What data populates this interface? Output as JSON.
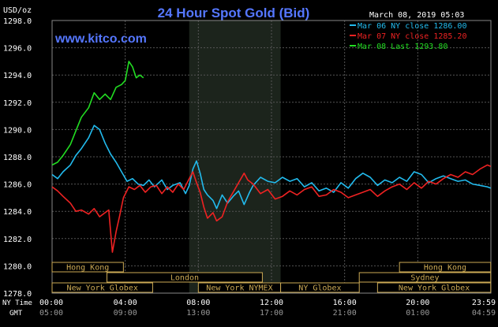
{
  "chart_data": {
    "type": "line",
    "title": "24 Hour Spot Gold (Bid)",
    "website": "www.kitco.com",
    "date_label": "March 08, 2019 05:03",
    "ylabel": "USD/oz",
    "ylim": [
      1278.0,
      1298.0
    ],
    "yticks": [
      "1298.0",
      "1296.0",
      "1294.0",
      "1292.0",
      "1290.0",
      "1288.0",
      "1286.0",
      "1284.0",
      "1282.0",
      "1280.0",
      "1278.0"
    ],
    "xlim": [
      0,
      24
    ],
    "row_ny_label": "NY Time",
    "row_gmt_label": "GMT",
    "x_ny_ticks": [
      "00:00",
      "04:00",
      "08:00",
      "12:00",
      "16:00",
      "20:00",
      "23:59"
    ],
    "x_gmt_ticks": [
      "05:00",
      "09:00",
      "13:00",
      "17:00",
      "21:00",
      "01:00",
      "04:59"
    ],
    "shaded_hours": [
      7.5,
      12.5
    ],
    "sessions": [
      {
        "label": "Hong Kong",
        "row": 0,
        "start": 0,
        "end": 3.9
      },
      {
        "label": "London",
        "row": 1,
        "start": 3.0,
        "end": 11.5
      },
      {
        "label": "New York Globex",
        "row": 2,
        "start": 0,
        "end": 5.5
      },
      {
        "label": "New York NYMEX",
        "row": 2,
        "start": 8.0,
        "end": 12.5
      },
      {
        "label": "NY Globex",
        "row": 2,
        "start": 12.5,
        "end": 16.8
      },
      {
        "label": "Hong Kong",
        "row": 0,
        "start": 19.0,
        "end": 23.99
      },
      {
        "label": "Sydney",
        "row": 1,
        "start": 16.8,
        "end": 23.99
      },
      {
        "label": "New York Globex",
        "row": 2,
        "start": 17.8,
        "end": 23.99
      }
    ],
    "series": [
      {
        "name": "Mar 06 NY close 1286.00",
        "color": "#22bbee",
        "x": [
          0,
          0.3,
          0.6,
          1.0,
          1.3,
          1.6,
          2.0,
          2.3,
          2.6,
          2.9,
          3.2,
          3.5,
          3.8,
          4.1,
          4.4,
          4.7,
          5.0,
          5.3,
          5.6,
          6.0,
          6.3,
          6.6,
          7.0,
          7.3,
          7.5,
          7.7,
          7.9,
          8.1,
          8.3,
          8.5,
          8.8,
          9.0,
          9.3,
          9.6,
          9.9,
          10.2,
          10.5,
          10.8,
          11.0,
          11.4,
          11.8,
          12.2,
          12.6,
          13.0,
          13.4,
          13.8,
          14.2,
          14.6,
          15.0,
          15.4,
          15.8,
          16.2,
          16.6,
          17.0,
          17.4,
          17.8,
          18.2,
          18.6,
          19.0,
          19.4,
          19.8,
          20.2,
          20.6,
          21.0,
          21.4,
          21.8,
          22.2,
          22.6,
          23.0,
          23.4,
          23.8,
          23.99
        ],
        "y": [
          1286.7,
          1286.4,
          1286.9,
          1287.4,
          1288.1,
          1288.6,
          1289.4,
          1290.3,
          1290.0,
          1289.0,
          1288.2,
          1287.6,
          1286.9,
          1286.2,
          1286.4,
          1286.0,
          1285.9,
          1286.3,
          1285.8,
          1286.3,
          1285.6,
          1285.9,
          1286.1,
          1285.3,
          1285.9,
          1287.1,
          1287.7,
          1286.8,
          1285.6,
          1285.2,
          1284.8,
          1284.2,
          1285.2,
          1284.6,
          1285.1,
          1285.5,
          1284.5,
          1285.4,
          1285.9,
          1286.5,
          1286.2,
          1286.1,
          1286.5,
          1286.2,
          1286.4,
          1285.8,
          1286.1,
          1285.5,
          1285.7,
          1285.4,
          1286.1,
          1285.7,
          1286.4,
          1286.8,
          1286.5,
          1285.9,
          1286.3,
          1286.1,
          1286.5,
          1286.2,
          1286.9,
          1286.7,
          1286.1,
          1286.4,
          1286.6,
          1286.4,
          1286.2,
          1286.3,
          1286.0,
          1285.9,
          1285.8,
          1285.7
        ]
      },
      {
        "name": "Mar 07 NY close 1285.20",
        "color": "#ee2222",
        "x": [
          0,
          0.3,
          0.6,
          1.0,
          1.3,
          1.6,
          2.0,
          2.3,
          2.6,
          2.9,
          3.1,
          3.3,
          3.5,
          3.7,
          3.9,
          4.2,
          4.5,
          4.8,
          5.1,
          5.4,
          5.7,
          6.0,
          6.3,
          6.6,
          6.9,
          7.2,
          7.5,
          7.7,
          7.9,
          8.1,
          8.3,
          8.5,
          8.8,
          9.0,
          9.3,
          9.6,
          9.9,
          10.2,
          10.5,
          10.7,
          11.0,
          11.4,
          11.8,
          12.2,
          12.6,
          13.0,
          13.4,
          13.8,
          14.2,
          14.6,
          15.0,
          15.4,
          15.8,
          16.2,
          16.6,
          17.0,
          17.4,
          17.8,
          18.2,
          18.6,
          19.0,
          19.4,
          19.8,
          20.2,
          20.6,
          21.0,
          21.4,
          21.8,
          22.2,
          22.6,
          23.0,
          23.4,
          23.8,
          23.99
        ],
        "y": [
          1285.8,
          1285.5,
          1285.1,
          1284.6,
          1284.0,
          1284.1,
          1283.8,
          1284.2,
          1283.6,
          1283.9,
          1284.1,
          1281.0,
          1282.5,
          1283.7,
          1285.0,
          1285.8,
          1285.6,
          1285.9,
          1285.4,
          1285.8,
          1285.9,
          1285.3,
          1285.8,
          1285.4,
          1286.0,
          1285.6,
          1286.4,
          1286.9,
          1286.1,
          1285.4,
          1284.3,
          1283.5,
          1283.9,
          1283.3,
          1283.6,
          1284.7,
          1285.4,
          1286.1,
          1286.8,
          1286.3,
          1286.0,
          1285.3,
          1285.6,
          1284.9,
          1285.1,
          1285.5,
          1285.2,
          1285.6,
          1285.8,
          1285.1,
          1285.2,
          1285.6,
          1285.4,
          1285.0,
          1285.2,
          1285.4,
          1285.6,
          1285.1,
          1285.5,
          1285.8,
          1286.0,
          1285.6,
          1286.1,
          1285.7,
          1286.2,
          1286.0,
          1286.4,
          1286.7,
          1286.5,
          1286.9,
          1286.7,
          1287.1,
          1287.4,
          1287.3
        ]
      },
      {
        "name": "Mar 08 Last 1293.80",
        "color": "#22dd22",
        "x": [
          0,
          0.3,
          0.6,
          1.0,
          1.3,
          1.6,
          2.0,
          2.3,
          2.6,
          2.9,
          3.2,
          3.5,
          3.8,
          4.0,
          4.2,
          4.4,
          4.6,
          4.8,
          5.0
        ],
        "y": [
          1287.4,
          1287.6,
          1288.1,
          1288.9,
          1289.9,
          1290.9,
          1291.6,
          1292.7,
          1292.2,
          1292.6,
          1292.2,
          1293.1,
          1293.3,
          1293.6,
          1295.0,
          1294.6,
          1293.8,
          1294.0,
          1293.8
        ]
      }
    ]
  }
}
